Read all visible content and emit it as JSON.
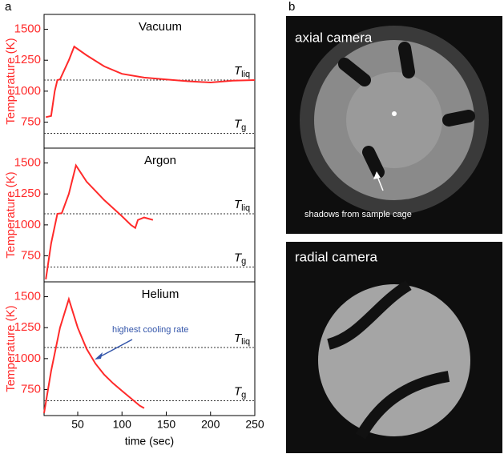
{
  "panel_labels": [
    "a",
    "b"
  ],
  "chart_data": [
    {
      "type": "line",
      "title": "Vacuum",
      "ylabel": "Temperature (K)",
      "xlim": [
        12,
        250
      ],
      "ylim": [
        540,
        1620
      ],
      "yticks": [
        750,
        1000,
        1250,
        1500
      ],
      "series": [
        {
          "color": "#ff2a2a",
          "x": [
            14,
            20,
            24,
            27,
            30,
            40,
            46,
            60,
            80,
            100,
            125,
            150,
            175,
            200,
            225,
            250
          ],
          "values": [
            790,
            800,
            1000,
            1090,
            1095,
            1250,
            1360,
            1290,
            1200,
            1140,
            1110,
            1095,
            1080,
            1070,
            1085,
            1090
          ]
        }
      ],
      "reference_lines": [
        {
          "text": "T",
          "sub": "liq",
          "value": 1090
        },
        {
          "text": "T",
          "sub": "g",
          "value": 660
        }
      ]
    },
    {
      "type": "line",
      "title": "Argon",
      "ylabel": "Temperature (K)",
      "xlim": [
        12,
        250
      ],
      "ylim": [
        540,
        1620
      ],
      "yticks": [
        750,
        1000,
        1250,
        1500
      ],
      "series": [
        {
          "color": "#ff2a2a",
          "x": [
            14,
            20,
            27,
            32,
            40,
            48,
            60,
            80,
            100,
            110,
            115,
            118,
            125,
            130,
            135
          ],
          "values": [
            560,
            850,
            1090,
            1095,
            1250,
            1480,
            1350,
            1200,
            1070,
            1000,
            975,
            1040,
            1060,
            1050,
            1040
          ]
        }
      ],
      "reference_lines": [
        {
          "text": "T",
          "sub": "liq",
          "value": 1090
        },
        {
          "text": "T",
          "sub": "g",
          "value": 660
        }
      ]
    },
    {
      "type": "line",
      "title": "Helium",
      "ylabel": "Temperature (K)",
      "xlabel": "time (sec)",
      "xlim": [
        12,
        250
      ],
      "xticks": [
        50,
        100,
        150,
        200,
        250
      ],
      "ylim": [
        540,
        1620
      ],
      "yticks": [
        750,
        1000,
        1250,
        1500
      ],
      "series": [
        {
          "color": "#ff2a2a",
          "x": [
            12,
            20,
            30,
            40,
            50,
            60,
            70,
            80,
            90,
            100,
            110,
            120,
            125
          ],
          "values": [
            560,
            900,
            1250,
            1480,
            1250,
            1080,
            960,
            870,
            800,
            740,
            680,
            620,
            600
          ]
        }
      ],
      "reference_lines": [
        {
          "text": "T",
          "sub": "liq",
          "value": 1090
        },
        {
          "text": "T",
          "sub": "g",
          "value": 660
        }
      ],
      "annotation": "highest cooling rate"
    }
  ],
  "images": [
    {
      "label": "axial camera",
      "annotation": "shadows from sample cage"
    },
    {
      "label": "radial camera"
    }
  ]
}
